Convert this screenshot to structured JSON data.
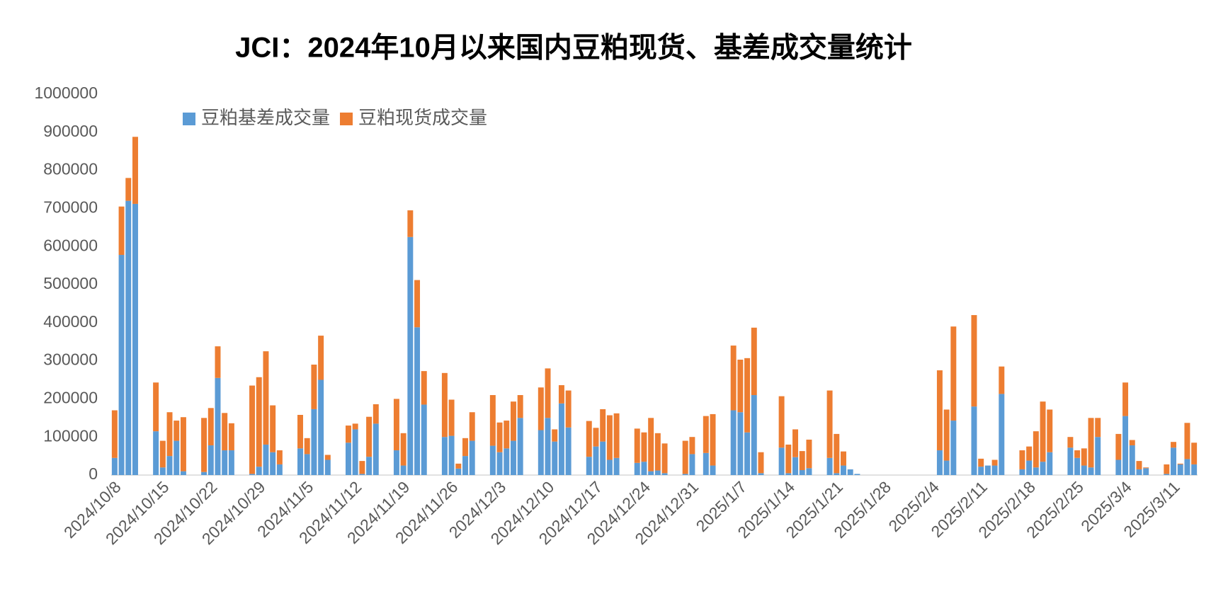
{
  "chart_data": {
    "type": "stacked_bar",
    "title": "JCI：2024年10月以来国内豆粕现货、基差成交量统计",
    "categories": [
      "2024/10/8",
      null,
      null,
      null,
      null,
      null,
      null,
      "2024/10/15",
      null,
      null,
      null,
      null,
      null,
      null,
      "2024/10/22",
      null,
      null,
      null,
      null,
      null,
      null,
      "2024/10/29",
      null,
      null,
      null,
      null,
      null,
      null,
      "2024/11/5",
      null,
      null,
      null,
      null,
      null,
      null,
      "2024/11/12",
      null,
      null,
      null,
      null,
      null,
      null,
      "2024/11/19",
      null,
      null,
      null,
      null,
      null,
      null,
      "2024/11/26",
      null,
      null,
      null,
      null,
      null,
      null,
      "2024/12/3",
      null,
      null,
      null,
      null,
      null,
      null,
      "2024/12/10",
      null,
      null,
      null,
      null,
      null,
      null,
      "2024/12/17",
      null,
      null,
      null,
      null,
      null,
      null,
      "2024/12/24",
      null,
      null,
      null,
      null,
      null,
      null,
      "2024/12/31",
      null,
      null,
      null,
      null,
      null,
      null,
      "2025/1/7",
      null,
      null,
      null,
      null,
      null,
      null,
      "2025/1/14",
      null,
      null,
      null,
      null,
      null,
      null,
      "2025/1/21",
      null,
      null,
      null,
      null,
      null,
      null,
      "2025/1/28",
      null,
      null,
      null,
      null,
      null,
      null,
      "2025/2/4",
      null,
      null,
      null,
      null,
      null,
      null,
      "2025/2/11",
      null,
      null,
      null,
      null,
      null,
      null,
      "2025/2/18",
      null,
      null,
      null,
      null,
      null,
      null,
      "2025/2/25",
      null,
      null,
      null,
      null,
      null,
      null,
      "2025/3/4",
      null,
      null,
      null,
      null,
      null,
      null,
      "2025/3/11",
      null,
      null,
      null
    ],
    "series": [
      {
        "name": "豆粕基差成交量",
        "color": "#5b9bd5",
        "values": [
          45000,
          578000,
          720000,
          712000,
          null,
          null,
          115000,
          20000,
          50000,
          90000,
          10000,
          null,
          null,
          8000,
          78000,
          255000,
          65000,
          65000,
          null,
          null,
          3000,
          22000,
          80000,
          60000,
          28000,
          null,
          null,
          70000,
          55000,
          173000,
          250000,
          40000,
          null,
          null,
          85000,
          120000,
          3000,
          48000,
          135000,
          null,
          null,
          65000,
          25000,
          625000,
          388000,
          185000,
          null,
          null,
          100000,
          103000,
          17000,
          50000,
          90000,
          null,
          null,
          77000,
          60000,
          70000,
          90000,
          150000,
          null,
          null,
          118000,
          150000,
          88000,
          188000,
          125000,
          null,
          null,
          48000,
          75000,
          88000,
          40000,
          45000,
          null,
          null,
          32000,
          35000,
          10000,
          12000,
          5000,
          null,
          null,
          3000,
          55000,
          null,
          58000,
          25000,
          null,
          null,
          170000,
          165000,
          112000,
          210000,
          5000,
          null,
          null,
          72000,
          5000,
          47000,
          13000,
          18000,
          null,
          null,
          45000,
          5000,
          25000,
          15000,
          3000,
          null,
          null,
          null,
          null,
          null,
          null,
          null,
          null,
          null,
          null,
          null,
          65000,
          38000,
          143000,
          null,
          null,
          180000,
          22000,
          25000,
          25000,
          213000,
          null,
          null,
          15000,
          38000,
          20000,
          35000,
          60000,
          null,
          null,
          72000,
          45000,
          25000,
          20000,
          100000,
          null,
          null,
          40000,
          155000,
          78000,
          15000,
          18000,
          null,
          null,
          3000,
          72000,
          28000,
          42000,
          28000
        ]
      },
      {
        "name": "豆粕现货成交量",
        "color": "#ed7d31",
        "values": [
          125000,
          127000,
          60000,
          176000,
          null,
          null,
          128000,
          70000,
          115000,
          53000,
          142000,
          null,
          null,
          142000,
          98000,
          83000,
          98000,
          71000,
          null,
          null,
          232000,
          235000,
          245000,
          123000,
          37000,
          null,
          null,
          88000,
          42000,
          117000,
          116000,
          13000,
          null,
          null,
          45000,
          15000,
          34000,
          105000,
          51000,
          null,
          null,
          135000,
          85000,
          70000,
          124000,
          88000,
          null,
          null,
          168000,
          95000,
          13000,
          47000,
          75000,
          null,
          null,
          133000,
          78000,
          73000,
          103000,
          60000,
          null,
          null,
          112000,
          130000,
          32000,
          48000,
          97000,
          null,
          null,
          94000,
          49000,
          85000,
          117000,
          117000,
          null,
          null,
          90000,
          77000,
          140000,
          98000,
          78000,
          null,
          null,
          87000,
          45000,
          null,
          97000,
          135000,
          null,
          null,
          170000,
          138000,
          195000,
          177000,
          55000,
          null,
          null,
          135000,
          75000,
          73000,
          50000,
          75000,
          null,
          null,
          177000,
          103000,
          37000,
          0,
          0,
          null,
          null,
          null,
          null,
          null,
          null,
          null,
          null,
          null,
          null,
          null,
          210000,
          134000,
          247000,
          null,
          null,
          240000,
          21000,
          0,
          15000,
          72000,
          null,
          null,
          50000,
          37000,
          95000,
          158000,
          112000,
          null,
          null,
          28000,
          20000,
          45000,
          130000,
          50000,
          null,
          null,
          68000,
          88000,
          14000,
          22000,
          2000,
          null,
          null,
          25000,
          15000,
          2000,
          95000,
          57000
        ]
      }
    ],
    "ylim": [
      0,
      1000000
    ],
    "yticks": [
      0,
      100000,
      200000,
      300000,
      400000,
      500000,
      600000,
      700000,
      800000,
      900000,
      1000000
    ],
    "grid": false,
    "legend": "top-left"
  }
}
